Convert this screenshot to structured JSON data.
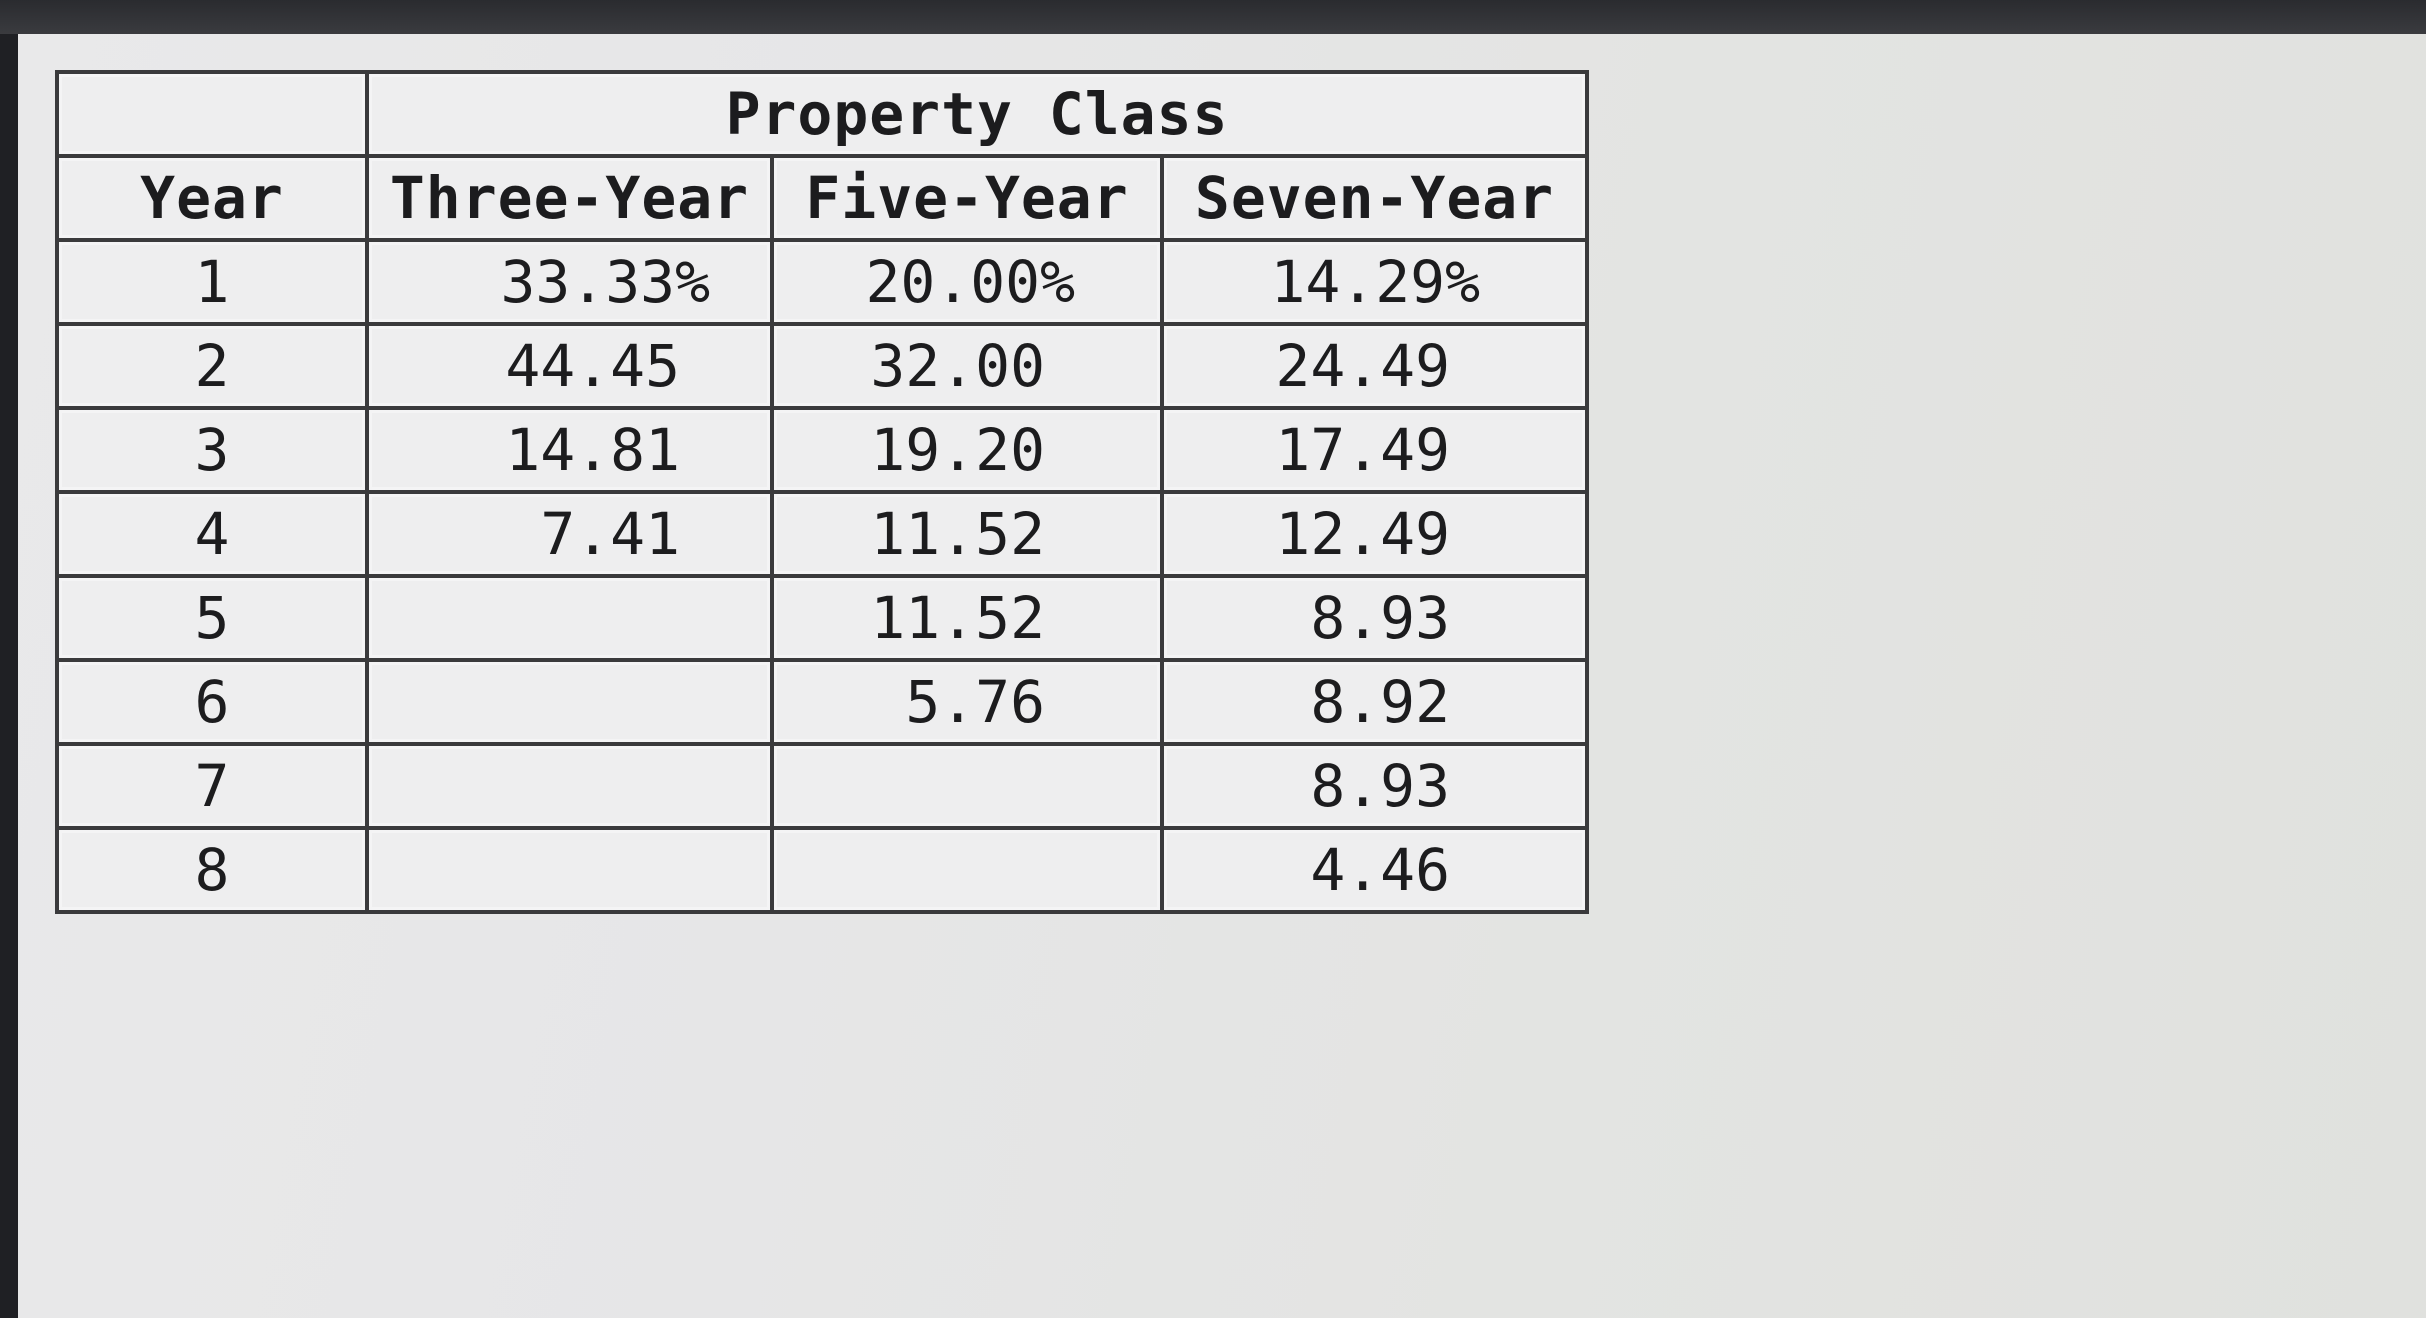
{
  "table": {
    "caption": "Property Class",
    "headers": {
      "year": "Year",
      "three": "Three-Year",
      "five": "Five-Year",
      "seven": "Seven-Year"
    },
    "rows": [
      {
        "year": "1",
        "three": "33.33%",
        "five": "20.00%",
        "seven": "14.29%"
      },
      {
        "year": "2",
        "three": "44.45",
        "five": "32.00",
        "seven": "24.49"
      },
      {
        "year": "3",
        "three": "14.81",
        "five": "19.20",
        "seven": "17.49"
      },
      {
        "year": "4",
        "three": "7.41",
        "five": "11.52",
        "seven": "12.49"
      },
      {
        "year": "5",
        "three": "",
        "five": "11.52",
        "seven": "8.93"
      },
      {
        "year": "6",
        "three": "",
        "five": "5.76",
        "seven": "8.92"
      },
      {
        "year": "7",
        "three": "",
        "five": "",
        "seven": "8.93"
      },
      {
        "year": "8",
        "three": "",
        "five": "",
        "seven": "4.46"
      }
    ]
  }
}
